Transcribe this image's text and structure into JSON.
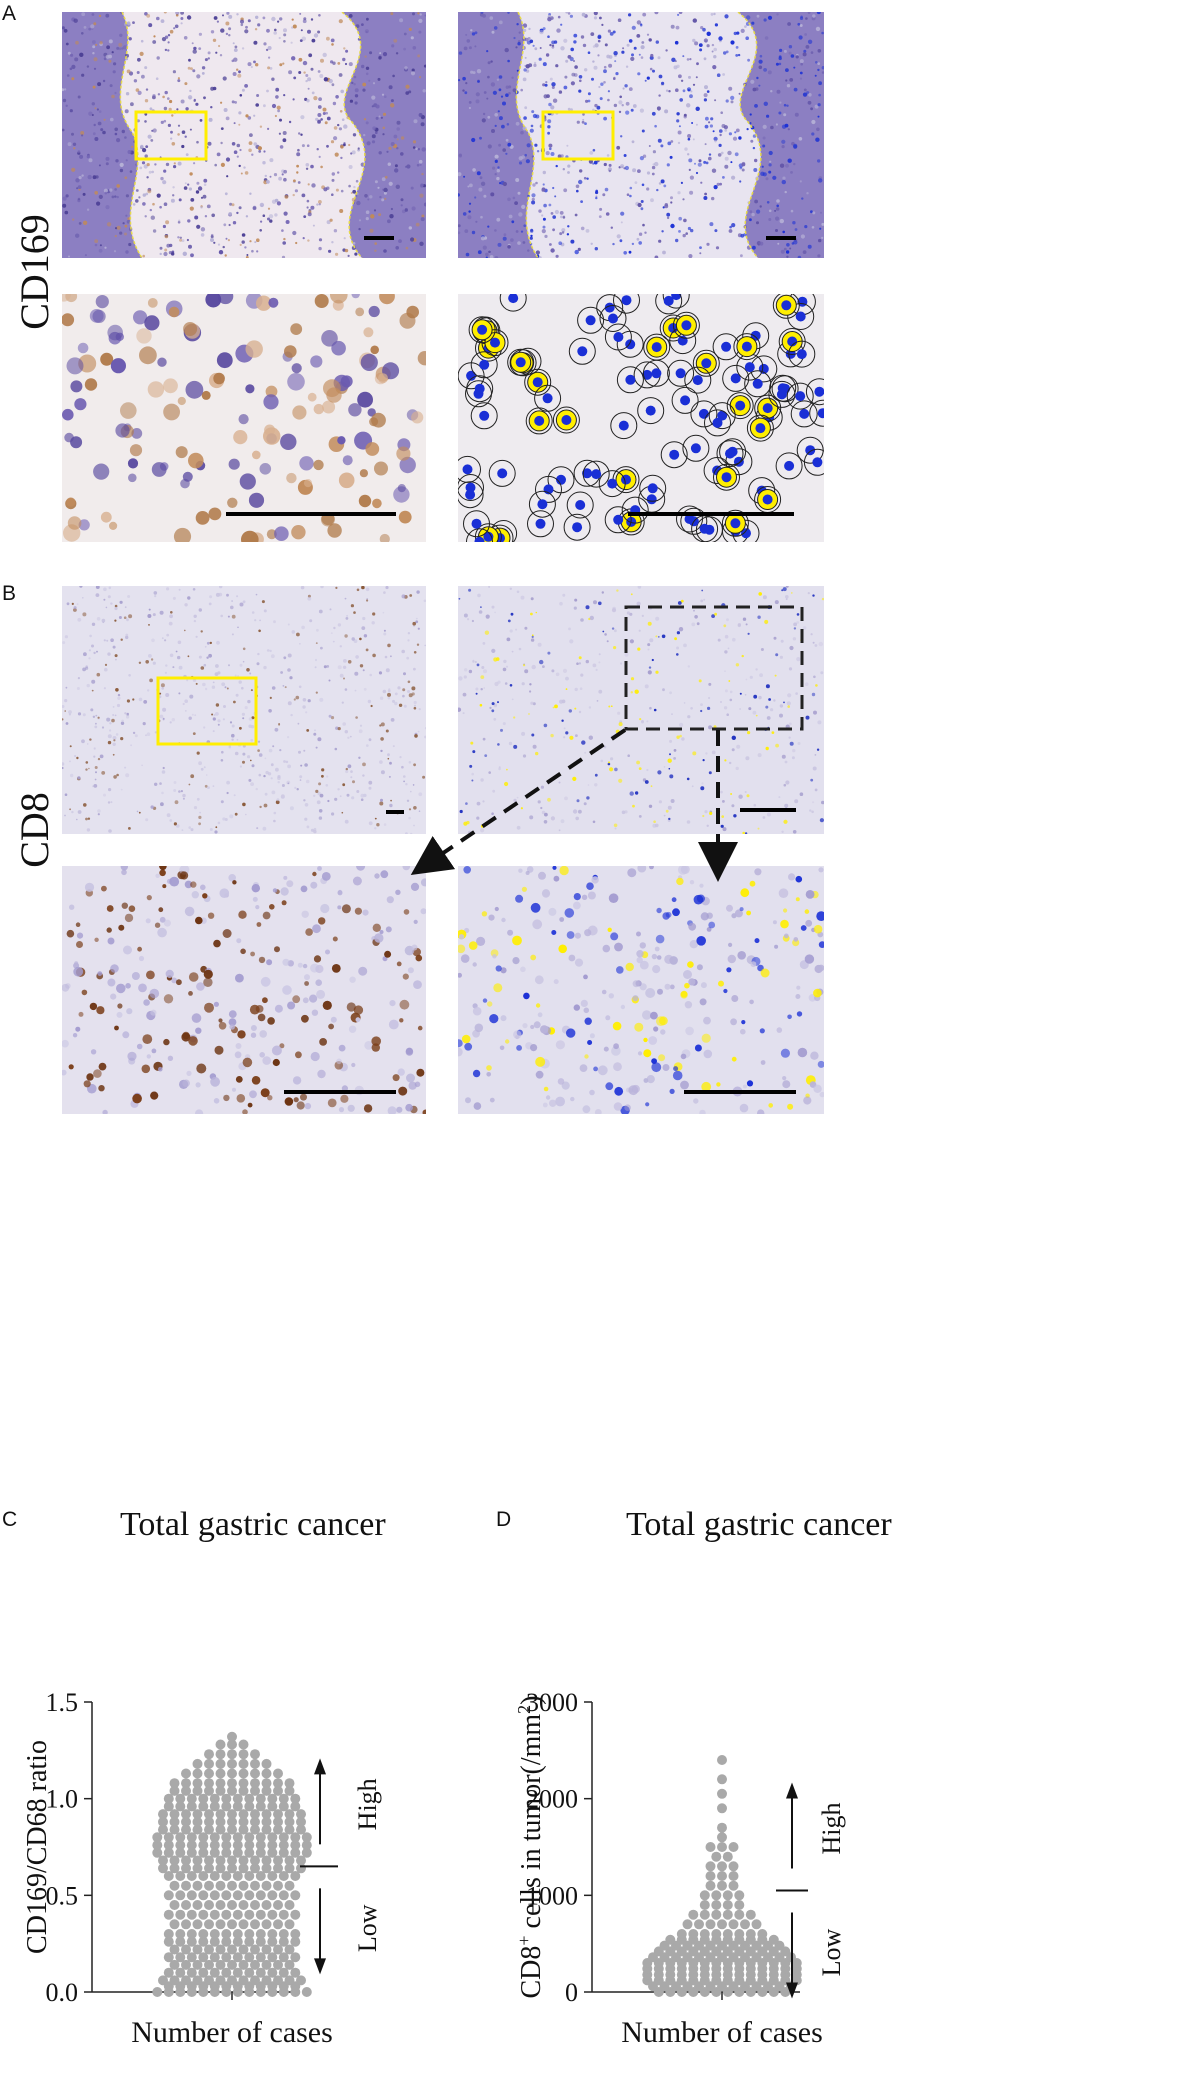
{
  "panels": {
    "a": "A",
    "b": "B",
    "c": "C",
    "d": "D"
  },
  "row_labels": {
    "cd169": "CD169",
    "cd8": "CD8"
  },
  "colors": {
    "hematoxylin": "#8a7fc0",
    "dab_brown": "#b07a4a",
    "yellow_outline": "#ffee00",
    "blue_nuclei": "#1a2fd6",
    "dot_gray": "#a9a9a9"
  },
  "chart_data": [
    {
      "type": "scatter",
      "title": "Total gastric cancer",
      "xlabel": "Number of cases",
      "ylabel": "CD169/CD68 ratio",
      "ylim": [
        0,
        1.5
      ],
      "yticks": [
        "0.0",
        "0.5",
        "1.0",
        "1.5"
      ],
      "cutoff": 0.65,
      "annotations": {
        "high": "High",
        "low": "Low"
      }
    },
    {
      "type": "scatter",
      "title": "Total gastric cancer",
      "xlabel": "Number of cases",
      "ylabel": "CD8+ cells in tumor(/mm2)",
      "ylim": [
        0,
        3000
      ],
      "yticks": [
        "0",
        "1000",
        "2000",
        "3000"
      ],
      "cutoff": 1050,
      "annotations": {
        "high": "High",
        "low": "Low"
      }
    }
  ]
}
